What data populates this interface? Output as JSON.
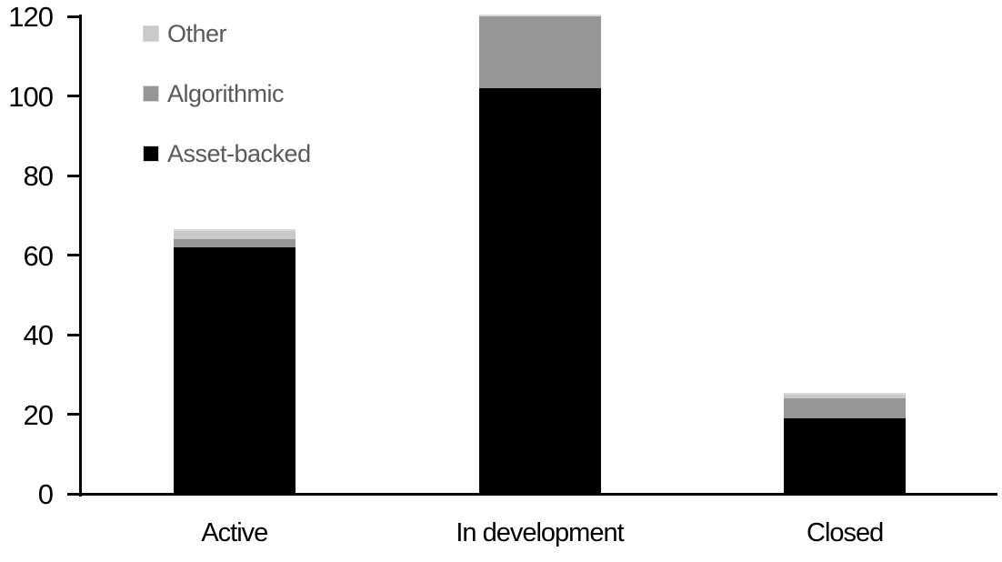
{
  "chart_data": {
    "type": "bar",
    "stacked": true,
    "title": "",
    "xlabel": "",
    "ylabel": "",
    "categories": [
      "Active",
      "In development",
      "Closed"
    ],
    "series": [
      {
        "name": "Asset-backed",
        "color": "#000000",
        "values": [
          62,
          102,
          19
        ]
      },
      {
        "name": "Algorithmic",
        "color": "#969696",
        "values": [
          2,
          18,
          5
        ]
      },
      {
        "name": "Other",
        "color": "#c9c9c9",
        "values": [
          2,
          0,
          1
        ]
      }
    ],
    "totals": [
      66,
      120,
      25
    ],
    "y_axis": {
      "min": 0,
      "max": 120,
      "tick_step": 20,
      "tick_labels": [
        "0",
        "20",
        "40",
        "60",
        "80",
        "100",
        "120"
      ]
    },
    "legend": {
      "position": "top-left",
      "items": [
        {
          "label": "Other",
          "color": "#c9c9c9"
        },
        {
          "label": "Algorithmic",
          "color": "#969696"
        },
        {
          "label": "Asset-backed",
          "color": "#000000"
        }
      ],
      "text_color": "#595959"
    },
    "grid": false,
    "axis_color": "#000000",
    "segment_border_color": "#d9d9d9"
  }
}
